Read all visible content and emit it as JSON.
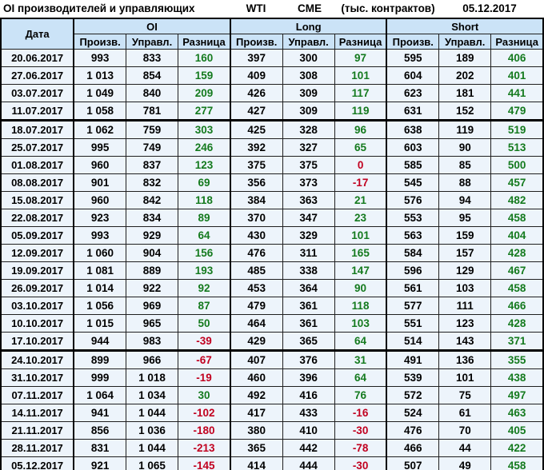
{
  "title_bar": {
    "left": "OI производителей и управляющих",
    "instrument": "WTI",
    "exchange": "CME",
    "units": "(тыс. контрактов)",
    "report_date": "05.12.2017"
  },
  "colors": {
    "positive_diff": "#147a1e",
    "negative_diff": "#c1001f",
    "header_bg": "#cbe3f7",
    "row_bg": "#edf4fb"
  },
  "chart_data": {
    "type": "table",
    "title": "OI производителей и управляющих",
    "date_column_header": "Дата",
    "column_groups": [
      "OI",
      "Long",
      "Short"
    ],
    "sub_columns": [
      "Произв.",
      "Управл.",
      "Разница"
    ],
    "rows": [
      {
        "date": "20.06.2017",
        "values": [
          "993",
          "833",
          "160",
          "397",
          "300",
          "97",
          "595",
          "189",
          "406"
        ],
        "sep": false
      },
      {
        "date": "27.06.2017",
        "values": [
          "1 013",
          "854",
          "159",
          "409",
          "308",
          "101",
          "604",
          "202",
          "401"
        ],
        "sep": false
      },
      {
        "date": "03.07.2017",
        "values": [
          "1 049",
          "840",
          "209",
          "426",
          "309",
          "117",
          "623",
          "181",
          "441"
        ],
        "sep": false
      },
      {
        "date": "11.07.2017",
        "values": [
          "1 058",
          "781",
          "277",
          "427",
          "309",
          "119",
          "631",
          "152",
          "479"
        ],
        "sep": true
      },
      {
        "date": "18.07.2017",
        "values": [
          "1 062",
          "759",
          "303",
          "425",
          "328",
          "96",
          "638",
          "119",
          "519"
        ],
        "sep": false
      },
      {
        "date": "25.07.2017",
        "values": [
          "995",
          "749",
          "246",
          "392",
          "327",
          "65",
          "603",
          "90",
          "513"
        ],
        "sep": false
      },
      {
        "date": "01.08.2017",
        "values": [
          "960",
          "837",
          "123",
          "375",
          "375",
          "0",
          "585",
          "85",
          "500"
        ],
        "sep": false
      },
      {
        "date": "08.08.2017",
        "values": [
          "901",
          "832",
          "69",
          "356",
          "373",
          "-17",
          "545",
          "88",
          "457"
        ],
        "sep": false
      },
      {
        "date": "15.08.2017",
        "values": [
          "960",
          "842",
          "118",
          "384",
          "363",
          "21",
          "576",
          "94",
          "482"
        ],
        "sep": false
      },
      {
        "date": "22.08.2017",
        "values": [
          "923",
          "834",
          "89",
          "370",
          "347",
          "23",
          "553",
          "95",
          "458"
        ],
        "sep": false
      },
      {
        "date": "05.09.2017",
        "values": [
          "993",
          "929",
          "64",
          "430",
          "329",
          "101",
          "563",
          "159",
          "404"
        ],
        "sep": false
      },
      {
        "date": "12.09.2017",
        "values": [
          "1 060",
          "904",
          "156",
          "476",
          "311",
          "165",
          "584",
          "157",
          "428"
        ],
        "sep": false
      },
      {
        "date": "19.09.2017",
        "values": [
          "1 081",
          "889",
          "193",
          "485",
          "338",
          "147",
          "596",
          "129",
          "467"
        ],
        "sep": false
      },
      {
        "date": "26.09.2017",
        "values": [
          "1 014",
          "922",
          "92",
          "453",
          "364",
          "90",
          "561",
          "103",
          "458"
        ],
        "sep": false
      },
      {
        "date": "03.10.2017",
        "values": [
          "1 056",
          "969",
          "87",
          "479",
          "361",
          "118",
          "577",
          "111",
          "466"
        ],
        "sep": false
      },
      {
        "date": "10.10.2017",
        "values": [
          "1 015",
          "965",
          "50",
          "464",
          "361",
          "103",
          "551",
          "123",
          "428"
        ],
        "sep": false
      },
      {
        "date": "17.10.2017",
        "values": [
          "944",
          "983",
          "-39",
          "429",
          "365",
          "64",
          "514",
          "143",
          "371"
        ],
        "sep": true
      },
      {
        "date": "24.10.2017",
        "values": [
          "899",
          "966",
          "-67",
          "407",
          "376",
          "31",
          "491",
          "136",
          "355"
        ],
        "sep": false
      },
      {
        "date": "31.10.2017",
        "values": [
          "999",
          "1 018",
          "-19",
          "460",
          "396",
          "64",
          "539",
          "101",
          "438"
        ],
        "sep": false
      },
      {
        "date": "07.11.2017",
        "values": [
          "1 064",
          "1 034",
          "30",
          "492",
          "416",
          "76",
          "572",
          "75",
          "497"
        ],
        "sep": false
      },
      {
        "date": "14.11.2017",
        "values": [
          "941",
          "1 044",
          "-102",
          "417",
          "433",
          "-16",
          "524",
          "61",
          "463"
        ],
        "sep": false
      },
      {
        "date": "21.11.2017",
        "values": [
          "856",
          "1 036",
          "-180",
          "380",
          "410",
          "-30",
          "476",
          "70",
          "405"
        ],
        "sep": false
      },
      {
        "date": "28.11.2017",
        "values": [
          "831",
          "1 044",
          "-213",
          "365",
          "442",
          "-78",
          "466",
          "44",
          "422"
        ],
        "sep": false
      },
      {
        "date": "05.12.2017",
        "values": [
          "921",
          "1 065",
          "-145",
          "414",
          "444",
          "-30",
          "507",
          "49",
          "458"
        ],
        "sep": false
      }
    ]
  }
}
